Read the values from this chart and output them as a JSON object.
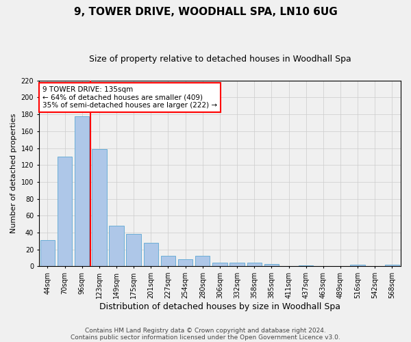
{
  "title": "9, TOWER DRIVE, WOODHALL SPA, LN10 6UG",
  "subtitle": "Size of property relative to detached houses in Woodhall Spa",
  "xlabel": "Distribution of detached houses by size in Woodhall Spa",
  "ylabel": "Number of detached properties",
  "footnote1": "Contains HM Land Registry data © Crown copyright and database right 2024.",
  "footnote2": "Contains public sector information licensed under the Open Government Licence v3.0.",
  "categories": [
    "44sqm",
    "70sqm",
    "96sqm",
    "123sqm",
    "149sqm",
    "175sqm",
    "201sqm",
    "227sqm",
    "254sqm",
    "280sqm",
    "306sqm",
    "332sqm",
    "358sqm",
    "385sqm",
    "411sqm",
    "437sqm",
    "463sqm",
    "489sqm",
    "516sqm",
    "542sqm",
    "568sqm"
  ],
  "values": [
    31,
    130,
    178,
    139,
    48,
    38,
    28,
    12,
    8,
    12,
    4,
    4,
    4,
    3,
    0,
    1,
    0,
    0,
    2,
    0,
    2
  ],
  "bar_color": "#aec7e8",
  "bar_edge_color": "#6baed6",
  "vline_color": "red",
  "annotation_line1": "9 TOWER DRIVE: 135sqm",
  "annotation_line2": "← 64% of detached houses are smaller (409)",
  "annotation_line3": "35% of semi-detached houses are larger (222) →",
  "annotation_box_color": "white",
  "annotation_box_edge_color": "red",
  "ylim": [
    0,
    220
  ],
  "yticks": [
    0,
    20,
    40,
    60,
    80,
    100,
    120,
    140,
    160,
    180,
    200,
    220
  ],
  "grid_color": "#cccccc",
  "background_color": "#f0f0f0",
  "title_fontsize": 11,
  "subtitle_fontsize": 9,
  "ylabel_fontsize": 8,
  "xlabel_fontsize": 9,
  "tick_fontsize": 7,
  "footnote_fontsize": 6.5
}
